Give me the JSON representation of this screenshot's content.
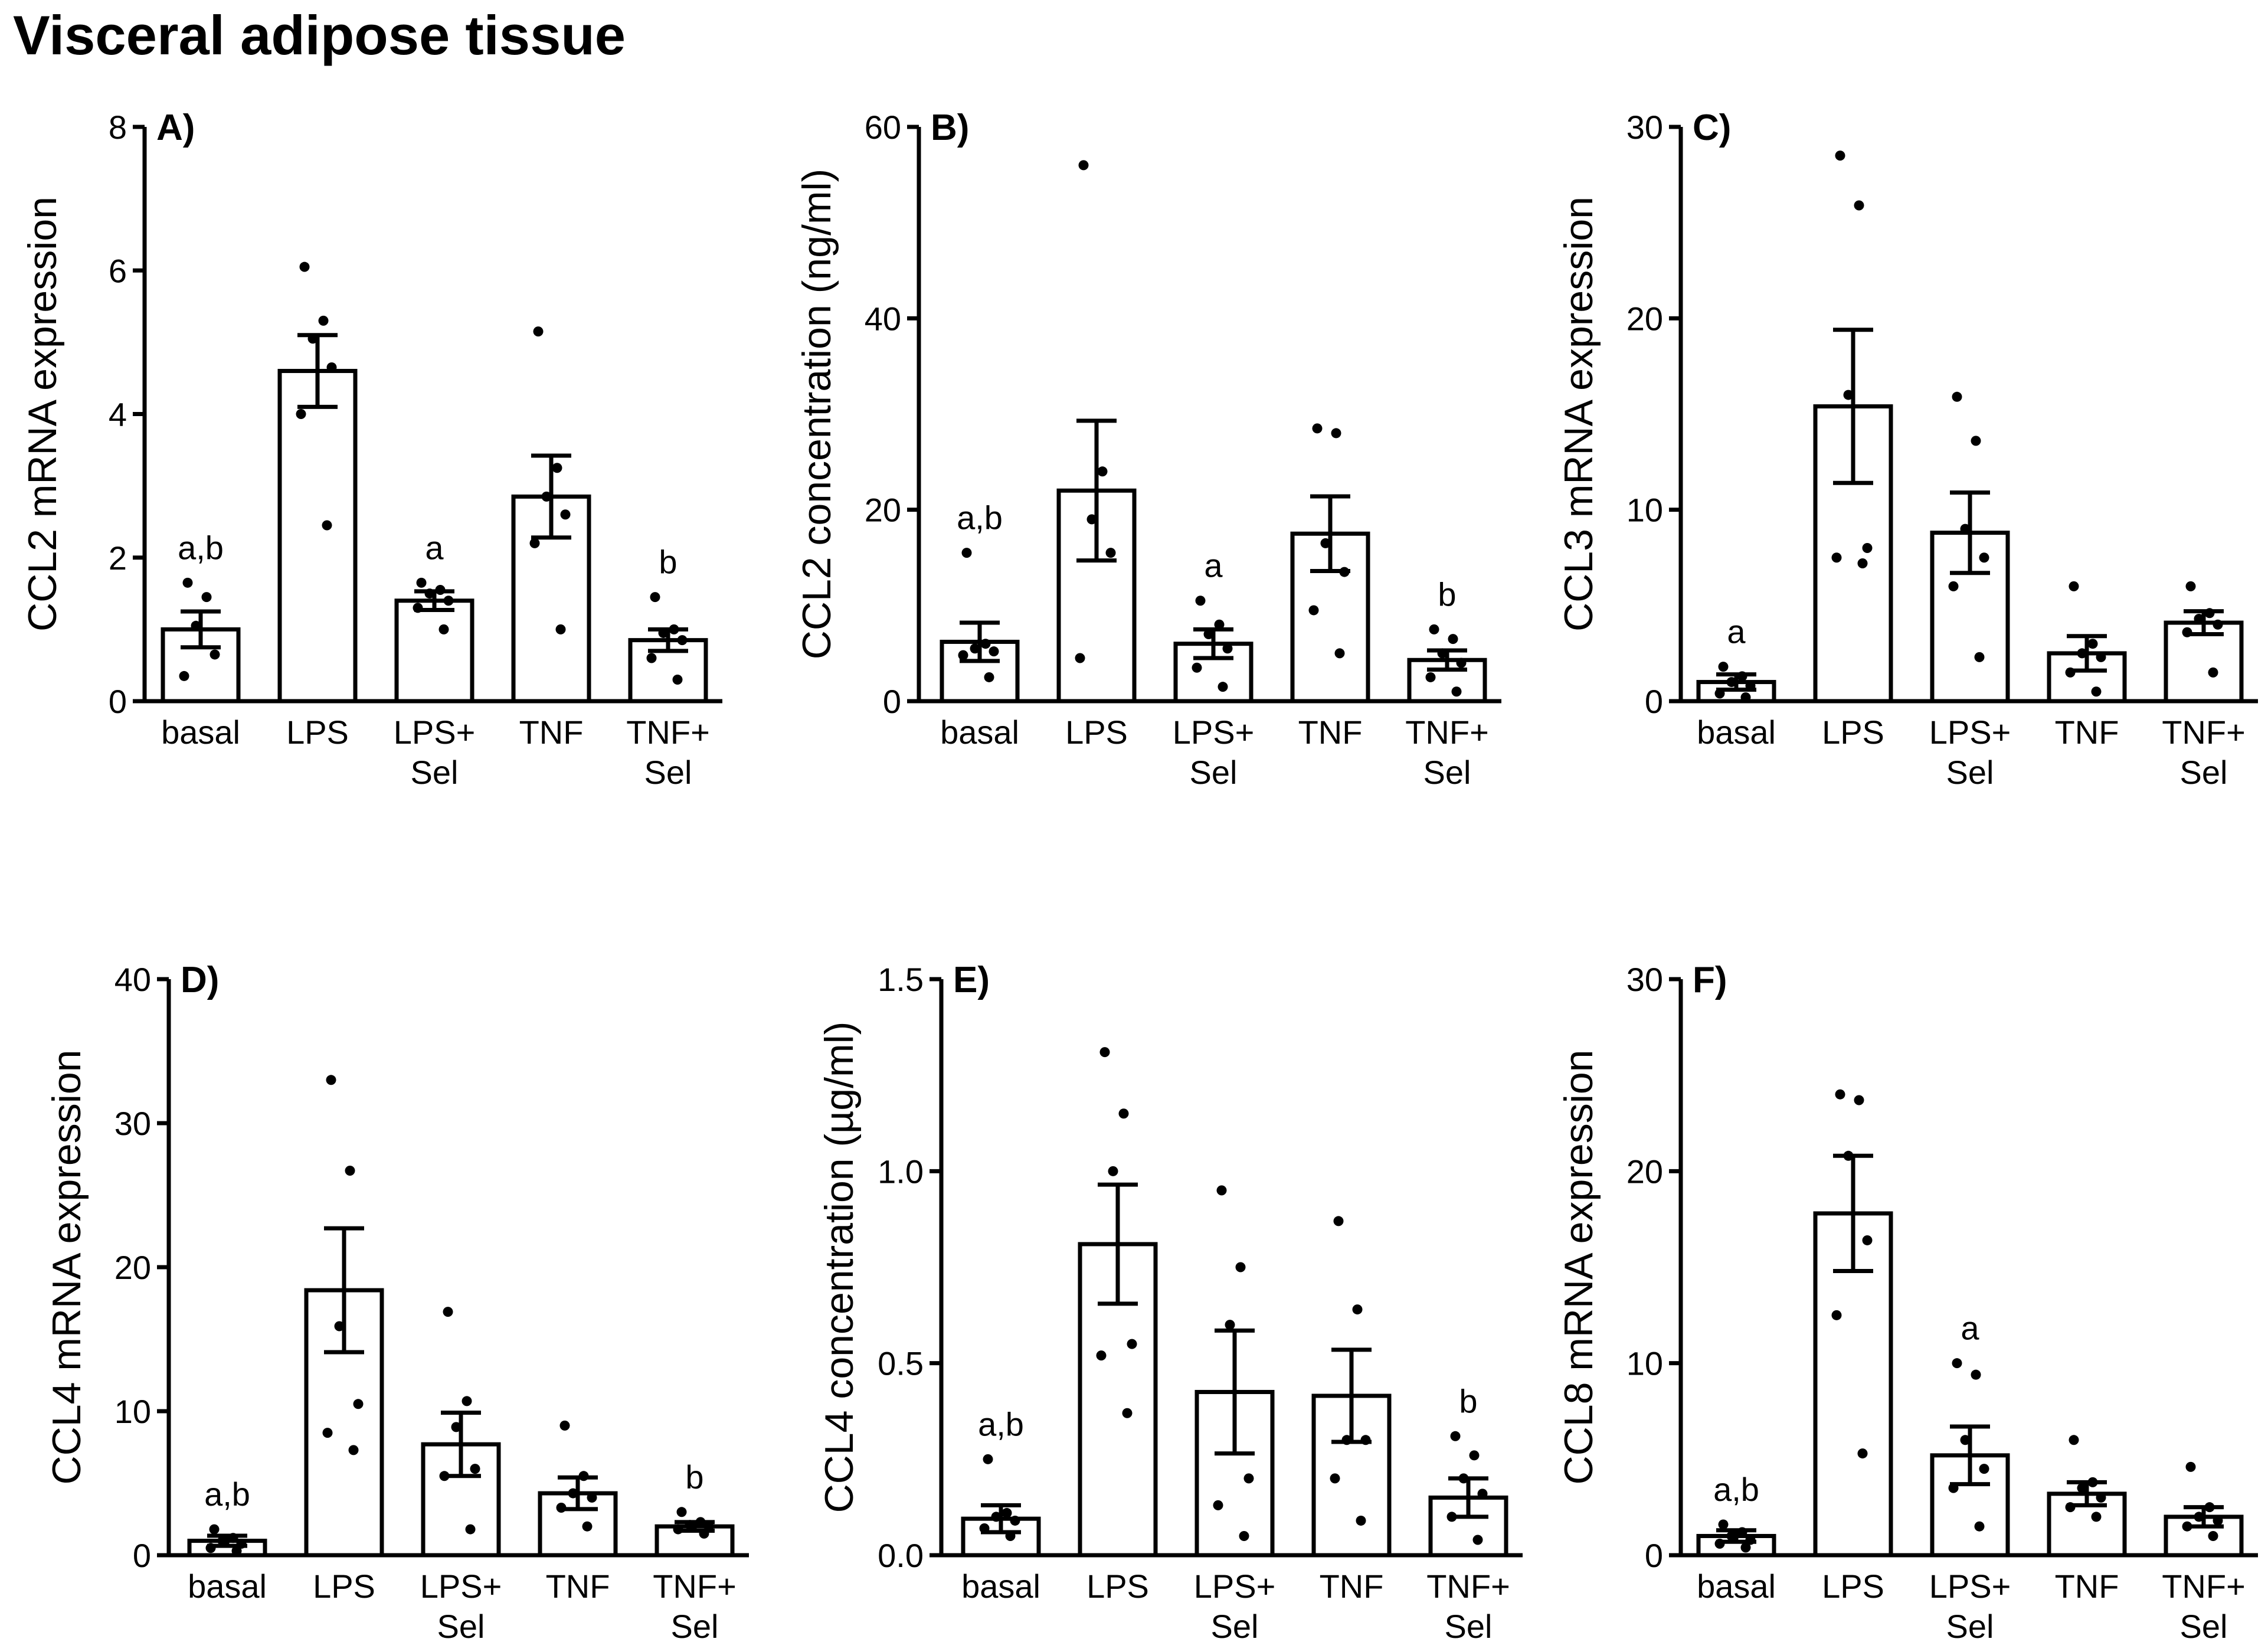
{
  "figure_title": "Visceral adipose tissue",
  "chart_data": [
    {
      "type": "bar",
      "panel": "A)",
      "ylabel": "CCL2 mRNA expression",
      "ylim": [
        0,
        8
      ],
      "yticks": [
        0,
        2,
        4,
        6,
        8
      ],
      "categories": [
        [
          "basal"
        ],
        [
          "LPS"
        ],
        [
          "LPS+",
          "Sel"
        ],
        [
          "TNF"
        ],
        [
          "TNF+",
          "Sel"
        ]
      ],
      "values": [
        1.0,
        4.6,
        1.4,
        2.85,
        0.85
      ],
      "sem": [
        0.25,
        0.5,
        0.13,
        0.57,
        0.15
      ],
      "points": [
        [
          1.65,
          1.45,
          1.05,
          0.65,
          0.35
        ],
        [
          6.05,
          5.3,
          5.05,
          4.65,
          4.0,
          2.45
        ],
        [
          1.65,
          1.55,
          1.5,
          1.4,
          1.3,
          1.0
        ],
        [
          5.15,
          3.25,
          2.85,
          2.6,
          2.2,
          1.0
        ],
        [
          1.45,
          1.0,
          0.95,
          0.85,
          0.6,
          0.3
        ]
      ],
      "significance": [
        "a,b",
        "",
        "a",
        "",
        "b"
      ]
    },
    {
      "type": "bar",
      "panel": "B)",
      "ylabel": "CCL2 concentration (ng/ml)",
      "ylim": [
        0,
        60
      ],
      "yticks": [
        0,
        20,
        40,
        60
      ],
      "categories": [
        [
          "basal"
        ],
        [
          "LPS"
        ],
        [
          "LPS+",
          "Sel"
        ],
        [
          "TNF"
        ],
        [
          "TNF+",
          "Sel"
        ]
      ],
      "values": [
        6.2,
        22.0,
        6.0,
        17.5,
        4.3
      ],
      "sem": [
        2.0,
        7.3,
        1.5,
        3.9,
        1.0
      ],
      "points": [
        [
          15.5,
          6.0,
          5.5,
          5.2,
          4.8,
          2.5
        ],
        [
          56.0,
          24.0,
          19.0,
          15.5,
          4.5
        ],
        [
          10.5,
          8.0,
          7.0,
          5.5,
          3.5,
          1.5
        ],
        [
          28.5,
          28.0,
          16.5,
          13.5,
          9.5,
          5.0
        ],
        [
          7.5,
          6.5,
          5.0,
          4.0,
          2.5,
          1.0
        ]
      ],
      "significance": [
        "a,b",
        "",
        "a",
        "",
        "b"
      ]
    },
    {
      "type": "bar",
      "panel": "C)",
      "ylabel": "CCL3 mRNA expression",
      "ylim": [
        0,
        30
      ],
      "yticks": [
        0,
        10,
        20,
        30
      ],
      "categories": [
        [
          "basal"
        ],
        [
          "LPS"
        ],
        [
          "LPS+",
          "Sel"
        ],
        [
          "TNF"
        ],
        [
          "TNF+",
          "Sel"
        ]
      ],
      "values": [
        1.0,
        15.4,
        8.8,
        2.5,
        4.1
      ],
      "sem": [
        0.4,
        4.0,
        2.1,
        0.9,
        0.6
      ],
      "points": [
        [
          1.8,
          1.3,
          1.0,
          0.8,
          0.4,
          0.2
        ],
        [
          28.5,
          25.9,
          16.0,
          8.0,
          7.5,
          7.2
        ],
        [
          15.9,
          13.6,
          9.0,
          7.5,
          6.0,
          2.3
        ],
        [
          6.0,
          3.0,
          2.5,
          2.3,
          1.5,
          0.5
        ],
        [
          6.0,
          4.6,
          4.3,
          4.0,
          3.6,
          1.5
        ]
      ],
      "significance": [
        "a",
        "",
        "",
        "",
        ""
      ]
    },
    {
      "type": "bar",
      "panel": "D)",
      "ylabel": "CCL4 mRNA expression",
      "ylim": [
        0,
        40
      ],
      "yticks": [
        0,
        10,
        20,
        30,
        40
      ],
      "categories": [
        [
          "basal"
        ],
        [
          "LPS"
        ],
        [
          "LPS+",
          "Sel"
        ],
        [
          "TNF"
        ],
        [
          "TNF+",
          "Sel"
        ]
      ],
      "values": [
        1.0,
        18.4,
        7.7,
        4.3,
        2.0
      ],
      "sem": [
        0.35,
        4.3,
        2.2,
        1.1,
        0.3
      ],
      "points": [
        [
          1.8,
          1.2,
          1.0,
          0.8,
          0.5,
          0.3
        ],
        [
          33.0,
          26.7,
          15.9,
          10.5,
          8.5,
          7.3
        ],
        [
          16.9,
          10.7,
          8.9,
          6.0,
          5.5,
          1.8
        ],
        [
          9.0,
          5.5,
          4.3,
          4.0,
          3.3,
          2.0
        ],
        [
          3.0,
          2.3,
          2.1,
          2.0,
          1.8,
          1.5
        ]
      ],
      "significance": [
        "a,b",
        "",
        "",
        "",
        "b"
      ]
    },
    {
      "type": "bar",
      "panel": "E)",
      "ylabel": "CCL4 concentration (µg/ml)",
      "ylim": [
        0,
        1.5
      ],
      "yticks": [
        0.0,
        0.5,
        1.0,
        1.5
      ],
      "ytick_labels": [
        "0.0",
        "0.5",
        "1.0",
        "1.5"
      ],
      "categories": [
        [
          "basal"
        ],
        [
          "LPS"
        ],
        [
          "LPS+",
          "Sel"
        ],
        [
          "TNF"
        ],
        [
          "TNF+",
          "Sel"
        ]
      ],
      "values": [
        0.095,
        0.81,
        0.425,
        0.415,
        0.15
      ],
      "sem": [
        0.035,
        0.155,
        0.16,
        0.12,
        0.05
      ],
      "points": [
        [
          0.25,
          0.11,
          0.1,
          0.09,
          0.07,
          0.05
        ],
        [
          1.31,
          1.15,
          1.0,
          0.55,
          0.52,
          0.37
        ],
        [
          0.95,
          0.75,
          0.6,
          0.2,
          0.13,
          0.05
        ],
        [
          0.87,
          0.64,
          0.3,
          0.3,
          0.2,
          0.09
        ],
        [
          0.31,
          0.26,
          0.2,
          0.16,
          0.1,
          0.04
        ]
      ],
      "significance": [
        "a,b",
        "",
        "",
        "",
        "b"
      ]
    },
    {
      "type": "bar",
      "panel": "F)",
      "ylabel": "CCL8 mRNA expression",
      "ylim": [
        0,
        30
      ],
      "yticks": [
        0,
        10,
        20,
        30
      ],
      "categories": [
        [
          "basal"
        ],
        [
          "LPS"
        ],
        [
          "LPS+",
          "Sel"
        ],
        [
          "TNF"
        ],
        [
          "TNF+",
          "Sel"
        ]
      ],
      "values": [
        1.0,
        17.8,
        5.2,
        3.2,
        2.0
      ],
      "sem": [
        0.3,
        3.0,
        1.5,
        0.6,
        0.5
      ],
      "points": [
        [
          1.6,
          1.2,
          1.0,
          0.8,
          0.6,
          0.4
        ],
        [
          24.0,
          23.7,
          20.8,
          16.4,
          12.5,
          5.3
        ],
        [
          10.0,
          9.4,
          6.0,
          4.5,
          3.5,
          1.5
        ],
        [
          6.0,
          3.8,
          3.5,
          3.0,
          2.5,
          2.0
        ],
        [
          4.6,
          2.5,
          2.0,
          1.8,
          1.5,
          1.0
        ]
      ],
      "significance": [
        "a,b",
        "",
        "a",
        "",
        ""
      ]
    }
  ]
}
